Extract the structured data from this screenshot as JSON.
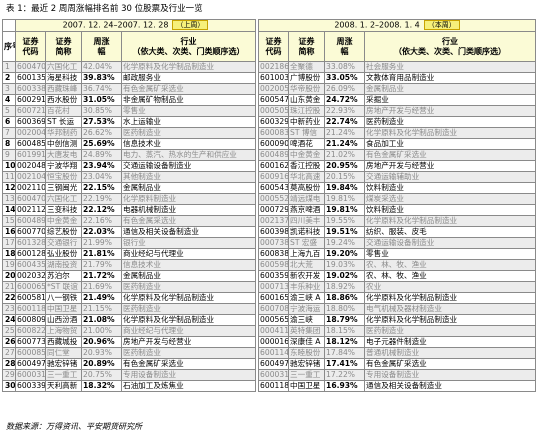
{
  "caption": "表 1：最近 2 周周涨幅排名前 30 位股票及行业一览",
  "source": "数据来源：万得资讯、平安期货研究所",
  "period_left": "2007. 12. 24–2007. 12. 28",
  "period_left_badge": "（上周）",
  "period_right": "2008. 1. 2–2008. 1. 4",
  "period_right_badge": "（本周）",
  "headers": {
    "num": "序号",
    "code": "证券\n代码",
    "name": "证券\n简称",
    "pct": "周涨\n幅",
    "industry": "行业\n（依大类、次类、门类顺序选）"
  },
  "rows": [
    {
      "n": "1",
      "lc": "600470",
      "ln": "六国化工",
      "lp": "42.04%",
      "li": "化学原料及化学制品制造业",
      "rc": "002186",
      "rn": "全聚德",
      "rp": "33.08%",
      "ri": "社会服务业"
    },
    {
      "n": "2",
      "lc": "600135",
      "ln": "海星科技",
      "lp": "39.83%",
      "li": "邮政服务业",
      "rc": "601003",
      "rn": "广博股份",
      "rp": "33.05%",
      "ri": "文教体育用品制造业"
    },
    {
      "n": "3",
      "lc": "600338",
      "ln": "西藏珠峰",
      "lp": "36.74%",
      "li": "有色金属矿采选业",
      "rc": "002005",
      "rn": "华帝股份",
      "rp": "26.09%",
      "ri": "金属制品业"
    },
    {
      "n": "4",
      "lc": "600291",
      "ln": "西水股份",
      "lp": "31.05%",
      "li": "非金属矿物制品业",
      "rc": "600547",
      "rn": "山东黄金",
      "rp": "24.72%",
      "ri": "采掘业"
    },
    {
      "n": "5",
      "lc": "600721",
      "ln": "百花村",
      "lp": "30.85%",
      "li": "零售业",
      "rc": "000505",
      "rn": "珠江控股",
      "rp": "22.93%",
      "ri": "房地产开发与经营业"
    },
    {
      "n": "6",
      "lc": "600369",
      "ln": "ST 长运",
      "lp": "27.53%",
      "li": "水上运输业",
      "rc": "600329",
      "rn": "中新药业",
      "rp": "22.74%",
      "ri": "医药制造业"
    },
    {
      "n": "7",
      "lc": "002004",
      "ln": "华邦制药",
      "lp": "26.62%",
      "li": "医药制造业",
      "rc": "600083",
      "rn": "ST 博信",
      "rp": "21.24%",
      "ri": "化学原料及化学制品制造业"
    },
    {
      "n": "8",
      "lc": "600485",
      "ln": "中创信测",
      "lp": "25.69%",
      "li": "信息技术业",
      "rc": "600090",
      "rn": "啤酒花",
      "rp": "21.24%",
      "ri": "食品加工业"
    },
    {
      "n": "9",
      "lc": "601991",
      "ln": "大唐发电",
      "lp": "24.89%",
      "li": "电力、蒸汽、热水的生产和供应业",
      "rc": "600489",
      "rn": "中金黄金",
      "rp": "21.02%",
      "ri": "有色金属矿采选业"
    },
    {
      "n": "10",
      "lc": "002048",
      "ln": "宁波华翔",
      "lp": "23.94%",
      "li": "交通运输设备制造业",
      "rc": "600162",
      "rn": "香江控股",
      "rp": "20.95%",
      "ri": "房地产开发与经营业"
    },
    {
      "n": "11",
      "lc": "002104",
      "ln": "恒宝股份",
      "lp": "23.04%",
      "li": "其他制造业",
      "rc": "600916",
      "rn": "华北高速",
      "rp": "20.15%",
      "ri": "交通运输辅助业"
    },
    {
      "n": "12",
      "lc": "002110",
      "ln": "三钢闽光",
      "lp": "22.15%",
      "li": "金属制品业",
      "rc": "600543",
      "rn": "莫高股份",
      "rp": "19.84%",
      "ri": "饮料制造业"
    },
    {
      "n": "13",
      "lc": "600470",
      "ln": "六国化工",
      "lp": "22.19%",
      "li": "化学原料制造业",
      "rc": "000552",
      "rn": "靖远煤电",
      "rp": "19.81%",
      "ri": "煤炭采选业"
    },
    {
      "n": "14",
      "lc": "002112",
      "ln": "三变科技",
      "lp": "22.12%",
      "li": "电器机械制造业",
      "rc": "000729",
      "rn": "燕京啤酒",
      "rp": "19.81%",
      "ri": "饮料制造业"
    },
    {
      "n": "15",
      "lc": "600489",
      "ln": "中金黄金",
      "lp": "22.16%",
      "li": "有色金属采选业",
      "rc": "002137",
      "rn": "四川美丰",
      "rp": "19.55%",
      "ri": "化学原料及化学制品制造业"
    },
    {
      "n": "16",
      "lc": "600770",
      "ln": "综艺股份",
      "lp": "22.03%",
      "li": "通信及相关设备制造业",
      "rc": "600398",
      "rn": "凯诺科技",
      "rp": "19.51%",
      "ri": "纺织、服装、皮毛"
    },
    {
      "n": "17",
      "lc": "601328",
      "ln": "交通银行",
      "lp": "21.99%",
      "li": "银行业",
      "rc": "000738",
      "rn": "ST 宏盛",
      "rp": "19.24%",
      "ri": "交通运输设备制造业"
    },
    {
      "n": "18",
      "lc": "600128",
      "ln": "弘业股份",
      "lp": "21.81%",
      "li": "商业经纪与代理业",
      "rc": "600838",
      "rn": "上海九百",
      "rp": "19.20%",
      "ri": "零售业"
    },
    {
      "n": "19",
      "lc": "600435",
      "ln": "湖南投资",
      "lp": "21.79%",
      "li": "信息技术业",
      "rc": "600598",
      "rn": "北大荒",
      "rp": "19.03%",
      "ri": "农、林、牧、渔业"
    },
    {
      "n": "20",
      "lc": "002032",
      "ln": "苏泊尔",
      "lp": "21.72%",
      "li": "金属制品业",
      "rc": "600359",
      "rn": "新农开发",
      "rp": "19.02%",
      "ri": "农、林、牧、渔业"
    },
    {
      "n": "21",
      "lc": "600065",
      "ln": "*ST 联谊",
      "lp": "21.69%",
      "li": "医药制造业",
      "rc": "000713",
      "rn": "丰乐种业",
      "rp": "18.92%",
      "ri": "农业"
    },
    {
      "n": "22",
      "lc": "600581",
      "ln": "八一钢铁",
      "lp": "21.49%",
      "li": "化学原料及化学制品制造业",
      "rc": "600165",
      "rn": "渝三峡 A",
      "rp": "18.86%",
      "ri": "化学原料及化学制品制造业"
    },
    {
      "n": "23",
      "lc": "600118",
      "ln": "中国卫星",
      "lp": "21.15%",
      "li": "医药制造业",
      "rc": "600708",
      "rn": "宁波海运",
      "rp": "18.80%",
      "ri": "电气机械及器材制造业"
    },
    {
      "n": "24",
      "lc": "600809",
      "ln": "山西汾酒",
      "lp": "21.08%",
      "li": "化学原料及化学制品制造业",
      "rc": "000565",
      "rn": "渝三峡",
      "rp": "18.79%",
      "ri": "化学原料及化学制品制造业"
    },
    {
      "n": "25",
      "lc": "600822",
      "ln": "上海物贸",
      "lp": "21.00%",
      "li": "商业经纪与代理业",
      "rc": "000411",
      "rn": "英特集团",
      "rp": "18.15%",
      "ri": "医药制造业"
    },
    {
      "n": "26",
      "lc": "600773",
      "ln": "西藏城投",
      "lp": "20.96%",
      "li": "房地产开发与经营业",
      "rc": "000016",
      "rn": "深康佳 A",
      "rp": "18.12%",
      "ri": "电子元器件制造业"
    },
    {
      "n": "27",
      "lc": "600085",
      "ln": "同仁堂",
      "lp": "20.93%",
      "li": "医药制造业",
      "rc": "600114",
      "rn": "东睦股份",
      "rp": "17.84%",
      "ri": "普通机械制造业"
    },
    {
      "n": "28",
      "lc": "600497",
      "ln": "驰宏锌锗",
      "lp": "20.89%",
      "li": "有色金属矿采选业",
      "rc": "600497",
      "rn": "驰宏锌锗",
      "rp": "17.41%",
      "ri": "有色金属矿采选业"
    },
    {
      "n": "29",
      "lc": "600031",
      "ln": "三一重工",
      "lp": "20.75%",
      "li": "专用设备制造业",
      "rc": "600031",
      "rn": "三一重工",
      "rp": "17.22%",
      "ri": "专用设备制造业"
    },
    {
      "n": "30",
      "lc": "600339",
      "ln": "天利高新",
      "lp": "18.32%",
      "li": "石油加工及炼焦业",
      "rc": "600118",
      "rn": "中国卫星",
      "rp": "16.93%",
      "ri": "通信及相关设备制造业"
    }
  ]
}
